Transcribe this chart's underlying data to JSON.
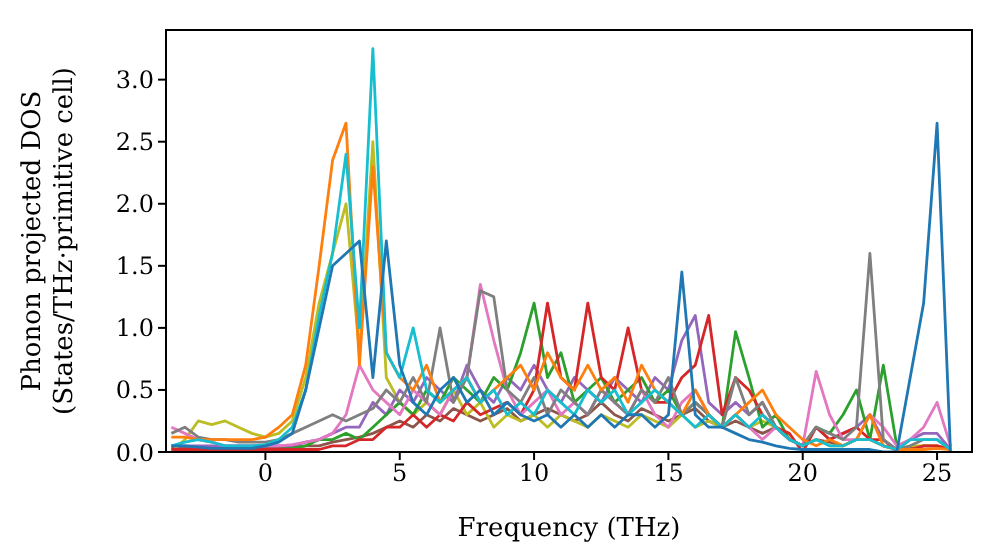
{
  "chart_data": {
    "type": "line",
    "xlabel": "Frequency (THz)",
    "ylabel": "Phonon projected DOS\n(States/THz·primitive cell)",
    "xlim": [
      -3.7,
      26.3
    ],
    "xticks": [
      0,
      5,
      10,
      15,
      20,
      25
    ],
    "ylim": [
      0,
      3.4
    ],
    "yticks": [
      {
        "value": 0,
        "label": "0.0"
      },
      0.5,
      {
        "value": 1,
        "label": "1.0"
      },
      1.5,
      {
        "value": 2,
        "label": "2.0"
      },
      2.5,
      {
        "value": 3,
        "label": "3.0"
      }
    ],
    "grid": false,
    "marker": "none",
    "line_style": "solid",
    "x": [
      -3.5,
      -3,
      -2.5,
      -2,
      -1.5,
      -1,
      -0.5,
      0,
      0.5,
      1,
      1.5,
      2,
      2.5,
      3,
      3.5,
      4,
      4.5,
      5,
      5.5,
      6,
      6.5,
      7,
      7.5,
      8,
      8.5,
      9,
      9.5,
      10,
      10.5,
      11,
      11.5,
      12,
      12.5,
      13,
      13.5,
      14,
      14.5,
      15,
      15.5,
      16,
      16.5,
      17,
      17.5,
      18,
      18.5,
      19,
      19.5,
      20,
      20.5,
      21,
      21.5,
      22,
      22.5,
      23,
      23.5,
      24,
      24.5,
      25,
      25.5
    ],
    "series": [
      {
        "color": "#8c564b",
        "values": [
          0.03,
          0.03,
          0.03,
          0.03,
          0.03,
          0.03,
          0.03,
          0.03,
          0.03,
          0.04,
          0.05,
          0.05,
          0.08,
          0.1,
          0.12,
          0.15,
          0.2,
          0.25,
          0.2,
          0.3,
          0.25,
          0.35,
          0.3,
          0.25,
          0.3,
          0.35,
          0.25,
          0.3,
          0.35,
          0.3,
          0.25,
          0.3,
          0.4,
          0.3,
          0.25,
          0.35,
          0.3,
          0.25,
          0.3,
          0.35,
          0.25,
          0.2,
          0.25,
          0.2,
          0.15,
          0.2,
          0.1,
          0.05,
          0.1,
          0.08,
          0.05,
          0.1,
          0.1,
          0.05,
          0.02,
          0.03,
          0.05,
          0.05,
          0.02
        ]
      },
      {
        "color": "#bcbd22",
        "values": [
          0.0,
          0.1,
          0.25,
          0.22,
          0.25,
          0.2,
          0.15,
          0.12,
          0.15,
          0.25,
          0.6,
          1.2,
          1.6,
          2.0,
          0.8,
          2.5,
          0.6,
          0.4,
          0.3,
          0.4,
          0.3,
          0.5,
          0.3,
          0.4,
          0.2,
          0.3,
          0.25,
          0.3,
          0.2,
          0.3,
          0.25,
          0.2,
          0.3,
          0.25,
          0.2,
          0.3,
          0.25,
          0.2,
          0.3,
          0.2,
          0.25,
          0.2,
          0.3,
          0.2,
          0.25,
          0.2,
          0.1,
          0.05,
          0.1,
          0.05,
          0.05,
          0.1,
          0.1,
          0.05,
          0.02,
          0.05,
          0.05,
          0.05,
          0.02
        ]
      },
      {
        "color": "#9467bd",
        "values": [
          0.05,
          0.05,
          0.05,
          0.05,
          0.05,
          0.05,
          0.05,
          0.05,
          0.05,
          0.05,
          0.08,
          0.1,
          0.15,
          0.2,
          0.2,
          0.4,
          0.3,
          0.5,
          0.4,
          0.6,
          0.5,
          0.4,
          0.7,
          0.5,
          0.4,
          0.6,
          0.5,
          0.7,
          0.5,
          0.4,
          0.6,
          0.5,
          0.4,
          0.6,
          0.5,
          0.4,
          0.6,
          0.5,
          0.9,
          1.1,
          0.4,
          0.3,
          0.4,
          0.3,
          0.4,
          0.2,
          0.1,
          0.05,
          0.2,
          0.1,
          0.15,
          0.2,
          0.3,
          0.1,
          0.02,
          0.1,
          0.15,
          0.15,
          0.02
        ]
      },
      {
        "color": "#2ca02c",
        "values": [
          null,
          null,
          null,
          null,
          null,
          null,
          null,
          0.02,
          0.02,
          0.03,
          0.05,
          0.1,
          0.1,
          0.15,
          0.1,
          0.2,
          0.3,
          0.4,
          0.3,
          0.5,
          0.4,
          0.6,
          0.5,
          0.4,
          0.6,
          0.5,
          0.8,
          1.2,
          0.6,
          0.8,
          0.4,
          0.5,
          0.6,
          0.4,
          0.5,
          0.6,
          0.4,
          0.5,
          0.3,
          0.4,
          0.3,
          0.2,
          0.97,
          0.6,
          0.2,
          0.3,
          0.1,
          0.05,
          0.2,
          0.15,
          0.3,
          0.5,
          0.1,
          0.7,
          0.05,
          0.02,
          null,
          null,
          null
        ]
      },
      {
        "color": "#d62728",
        "values": [
          0.02,
          0.02,
          0.02,
          0.02,
          0.02,
          0.02,
          0.02,
          0.02,
          0.02,
          0.02,
          0.02,
          0.02,
          0.05,
          0.05,
          0.1,
          0.1,
          0.2,
          0.2,
          0.3,
          0.2,
          0.3,
          0.25,
          0.4,
          0.3,
          0.35,
          0.4,
          0.3,
          0.5,
          1.2,
          0.6,
          0.5,
          1.2,
          0.6,
          0.5,
          1.0,
          0.5,
          0.4,
          0.4,
          0.6,
          0.7,
          1.1,
          0.3,
          0.6,
          0.5,
          0.3,
          0.2,
          0.15,
          0.0,
          0.2,
          0.1,
          0.15,
          0.2,
          0.1,
          0.1,
          0.0,
          0.02,
          0.05,
          0.05,
          0.02
        ]
      },
      {
        "color": "#e377c2",
        "values": [
          0.2,
          0.15,
          0.1,
          0.08,
          0.05,
          0.05,
          0.05,
          0.05,
          0.05,
          0.06,
          0.08,
          0.1,
          0.15,
          0.3,
          0.7,
          0.5,
          0.4,
          0.3,
          0.5,
          0.4,
          0.3,
          0.5,
          0.6,
          1.35,
          0.9,
          0.5,
          0.3,
          0.4,
          0.5,
          0.3,
          0.4,
          0.3,
          0.5,
          0.4,
          0.3,
          0.5,
          0.3,
          0.2,
          0.4,
          0.5,
          0.3,
          0.2,
          0.3,
          0.2,
          0.1,
          0.2,
          0.1,
          0.05,
          0.65,
          0.3,
          0.1,
          0.1,
          0.3,
          0.2,
          0.05,
          0.1,
          0.2,
          0.4,
          0.05
        ]
      },
      {
        "color": "#7f7f7f",
        "values": [
          0.15,
          0.2,
          0.12,
          0.1,
          0.1,
          0.08,
          0.08,
          0.08,
          0.1,
          0.15,
          0.2,
          0.25,
          0.3,
          0.25,
          0.3,
          0.35,
          0.5,
          0.4,
          0.6,
          0.4,
          1.0,
          0.4,
          0.6,
          1.3,
          1.25,
          0.5,
          0.4,
          0.6,
          0.3,
          0.5,
          0.4,
          0.3,
          0.5,
          0.4,
          0.3,
          0.5,
          0.4,
          0.6,
          0.3,
          0.4,
          0.3,
          0.2,
          0.6,
          0.3,
          0.4,
          0.2,
          0.1,
          0.05,
          0.2,
          0.15,
          0.1,
          0.2,
          1.6,
          0.1,
          0.02,
          0.05,
          0.1,
          0.1,
          0.02
        ]
      },
      {
        "color": "#ff7f0e",
        "values": [
          0.12,
          0.12,
          0.1,
          0.1,
          0.1,
          0.1,
          0.1,
          0.12,
          0.2,
          0.3,
          0.7,
          1.5,
          2.35,
          2.65,
          0.7,
          2.3,
          0.8,
          0.6,
          0.5,
          0.7,
          0.4,
          0.5,
          0.6,
          0.4,
          0.5,
          0.6,
          0.7,
          0.5,
          0.8,
          0.6,
          0.5,
          0.7,
          0.5,
          0.6,
          0.4,
          0.7,
          0.5,
          0.4,
          0.3,
          0.5,
          0.3,
          0.2,
          0.3,
          0.4,
          0.5,
          0.3,
          0.2,
          0.1,
          0.05,
          0.1,
          0.05,
          0.1,
          0.3,
          0.05,
          0.02,
          0.02,
          0.02,
          0.03,
          0.02
        ]
      },
      {
        "color": "#17becf",
        "values": [
          0.05,
          0.08,
          0.1,
          0.08,
          0.05,
          0.05,
          0.05,
          0.06,
          0.1,
          0.2,
          0.5,
          1.1,
          1.6,
          2.4,
          1.0,
          3.25,
          0.8,
          0.6,
          1.0,
          0.5,
          0.4,
          0.5,
          0.6,
          0.4,
          0.5,
          0.3,
          0.4,
          0.3,
          0.5,
          0.4,
          0.3,
          0.5,
          0.4,
          0.5,
          0.3,
          0.4,
          0.5,
          0.4,
          0.3,
          0.2,
          0.3,
          0.2,
          0.3,
          0.2,
          0.3,
          0.2,
          0.1,
          0.05,
          0.1,
          0.05,
          0.05,
          0.1,
          0.1,
          0.05,
          0.02,
          0.1,
          0.1,
          0.1,
          0.02
        ]
      },
      {
        "color": "#1f77b4",
        "values": [
          0.05,
          0.05,
          0.04,
          0.03,
          0.03,
          0.03,
          0.03,
          0.05,
          0.08,
          0.15,
          0.5,
          1.0,
          1.5,
          1.6,
          1.7,
          0.6,
          1.7,
          0.7,
          0.4,
          0.3,
          0.5,
          0.6,
          0.4,
          0.5,
          0.3,
          0.4,
          0.3,
          0.25,
          0.3,
          0.2,
          0.3,
          0.2,
          0.3,
          0.2,
          0.3,
          0.3,
          0.2,
          0.3,
          1.45,
          0.3,
          0.2,
          0.2,
          0.15,
          0.1,
          0.08,
          0.05,
          0.03,
          0.02,
          0.02,
          0.02,
          0.02,
          0.02,
          0.02,
          0.0,
          0.0,
          0.6,
          1.2,
          2.65,
          0.0
        ]
      }
    ]
  }
}
